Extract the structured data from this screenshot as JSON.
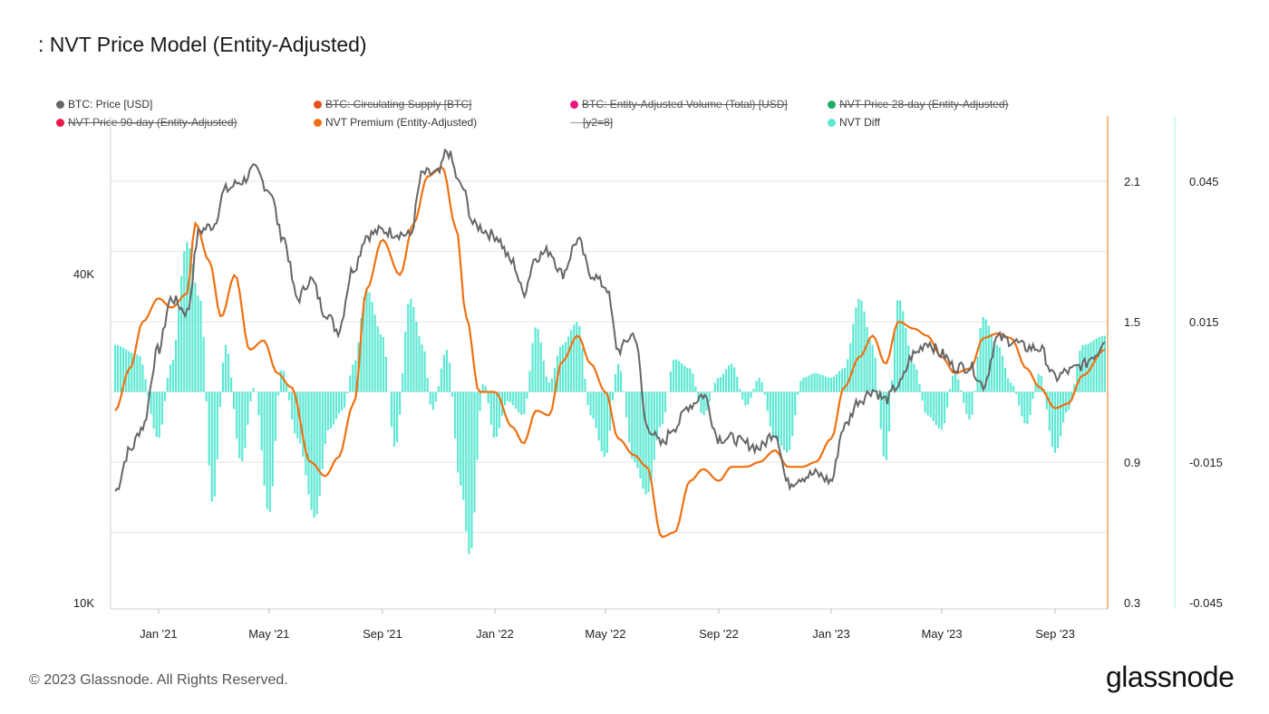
{
  "title": ": NVT Price Model (Entity-Adjusted)",
  "footer": "© 2023 Glassnode. All Rights Reserved.",
  "logo": "glassnode",
  "legend": [
    {
      "label": "BTC: Price [USD]",
      "color": "#666666",
      "active": true
    },
    {
      "label": "BTC: Circulating Supply [BTC]",
      "color": "#e8501a",
      "active": false
    },
    {
      "label": "BTC: Entity-Adjusted Volume (Total) [USD]",
      "color": "#e8197e",
      "active": false
    },
    {
      "label": "NVT Price 28-day (Entity-Adjusted)",
      "color": "#1aaf64",
      "active": false
    },
    {
      "label": "NVT Price 90-day (Entity-Adjusted)",
      "color": "#e8194a",
      "active": false
    },
    {
      "label": "NVT Premium (Entity-Adjusted)",
      "color": "#f07010",
      "active": true
    },
    {
      "label": "[y2=8]",
      "color": "#999999",
      "active": false
    },
    {
      "label": "NVT Diff",
      "color": "#5ee8d4",
      "active": true
    }
  ],
  "chart_data": {
    "type": "line",
    "x_ticks": [
      "Jan '21",
      "May '21",
      "Sep '21",
      "Jan '22",
      "May '22",
      "Sep '22",
      "Jan '23",
      "May '23",
      "Sep '23"
    ],
    "y_left": {
      "scale": "log",
      "range": [
        10000,
        70000
      ],
      "tick_labels": [
        "10K",
        "40K"
      ],
      "ticks": [
        10000,
        40000
      ]
    },
    "y_right1": {
      "range": [
        0.3,
        2.4
      ],
      "tick_labels": [
        "0.3",
        "0.9",
        "1.5",
        "2.1"
      ],
      "ticks": [
        0.3,
        0.9,
        1.5,
        2.1
      ]
    },
    "y_right2": {
      "range": [
        -0.045,
        0.055
      ],
      "tick_labels": [
        "-0.045",
        "-0.015",
        "0.015",
        "0.045"
      ],
      "ticks": [
        -0.045,
        -0.015,
        0.015,
        0.045
      ]
    },
    "series": [
      {
        "name": "BTC: Price [USD]",
        "axis": "left",
        "color": "#666666",
        "points": [
          [
            "2020-11-15",
            16000
          ],
          [
            "2020-12-01",
            19000
          ],
          [
            "2020-12-15",
            21000
          ],
          [
            "2021-01-01",
            29000
          ],
          [
            "2021-01-15",
            36000
          ],
          [
            "2021-02-01",
            34000
          ],
          [
            "2021-02-15",
            48000
          ],
          [
            "2021-03-01",
            49000
          ],
          [
            "2021-03-15",
            57000
          ],
          [
            "2021-04-01",
            59000
          ],
          [
            "2021-04-15",
            62000
          ],
          [
            "2021-05-01",
            57000
          ],
          [
            "2021-05-15",
            47000
          ],
          [
            "2021-06-01",
            36000
          ],
          [
            "2021-06-15",
            39000
          ],
          [
            "2021-07-01",
            34000
          ],
          [
            "2021-07-15",
            31500
          ],
          [
            "2021-08-01",
            41000
          ],
          [
            "2021-08-15",
            47000
          ],
          [
            "2021-09-01",
            48000
          ],
          [
            "2021-09-15",
            47500
          ],
          [
            "2021-10-01",
            47000
          ],
          [
            "2021-10-15",
            61000
          ],
          [
            "2021-11-01",
            61000
          ],
          [
            "2021-11-10",
            67000
          ],
          [
            "2021-11-25",
            58000
          ],
          [
            "2021-12-10",
            49000
          ],
          [
            "2022-01-01",
            47000
          ],
          [
            "2022-01-20",
            42000
          ],
          [
            "2022-02-01",
            37000
          ],
          [
            "2022-02-15",
            43000
          ],
          [
            "2022-03-01",
            44000
          ],
          [
            "2022-03-15",
            40000
          ],
          [
            "2022-04-01",
            46000
          ],
          [
            "2022-04-15",
            40000
          ],
          [
            "2022-05-01",
            38000
          ],
          [
            "2022-05-15",
            29000
          ],
          [
            "2022-06-01",
            31000
          ],
          [
            "2022-06-15",
            21000
          ],
          [
            "2022-07-01",
            19500
          ],
          [
            "2022-07-15",
            21000
          ],
          [
            "2022-08-01",
            23000
          ],
          [
            "2022-08-15",
            24000
          ],
          [
            "2022-09-01",
            20000
          ],
          [
            "2022-09-15",
            20000
          ],
          [
            "2022-10-01",
            19500
          ],
          [
            "2022-10-15",
            19200
          ],
          [
            "2022-11-01",
            20500
          ],
          [
            "2022-11-15",
            16500
          ],
          [
            "2022-12-01",
            17000
          ],
          [
            "2022-12-15",
            17200
          ],
          [
            "2023-01-01",
            16700
          ],
          [
            "2023-01-15",
            21000
          ],
          [
            "2023-02-01",
            23500
          ],
          [
            "2023-02-15",
            24500
          ],
          [
            "2023-03-01",
            23500
          ],
          [
            "2023-03-15",
            25000
          ],
          [
            "2023-04-01",
            28500
          ],
          [
            "2023-04-15",
            30000
          ],
          [
            "2023-05-01",
            28500
          ],
          [
            "2023-05-15",
            27000
          ],
          [
            "2023-06-01",
            27000
          ],
          [
            "2023-06-15",
            25000
          ],
          [
            "2023-07-01",
            30500
          ],
          [
            "2023-07-15",
            30200
          ],
          [
            "2023-08-01",
            29300
          ],
          [
            "2023-08-15",
            29200
          ],
          [
            "2023-09-01",
            25800
          ],
          [
            "2023-09-15",
            26500
          ],
          [
            "2023-10-01",
            27200
          ],
          [
            "2023-10-15",
            28500
          ],
          [
            "2023-10-25",
            30500
          ]
        ]
      },
      {
        "name": "NVT Premium (Entity-Adjusted)",
        "axis": "right1",
        "color": "#f07010",
        "points": [
          [
            "2020-11-15",
            1.12
          ],
          [
            "2020-12-01",
            1.3
          ],
          [
            "2020-12-15",
            1.5
          ],
          [
            "2021-01-01",
            1.6
          ],
          [
            "2021-01-15",
            1.56
          ],
          [
            "2021-02-01",
            1.62
          ],
          [
            "2021-02-10",
            1.92
          ],
          [
            "2021-02-25",
            1.76
          ],
          [
            "2021-03-10",
            1.52
          ],
          [
            "2021-03-25",
            1.7
          ],
          [
            "2021-04-10",
            1.38
          ],
          [
            "2021-04-25",
            1.42
          ],
          [
            "2021-05-10",
            1.28
          ],
          [
            "2021-05-25",
            1.22
          ],
          [
            "2021-06-15",
            0.9
          ],
          [
            "2021-07-01",
            0.84
          ],
          [
            "2021-07-15",
            0.92
          ],
          [
            "2021-08-01",
            1.15
          ],
          [
            "2021-08-15",
            1.64
          ],
          [
            "2021-09-01",
            1.85
          ],
          [
            "2021-09-20",
            1.7
          ],
          [
            "2021-10-05",
            1.92
          ],
          [
            "2021-10-20",
            2.12
          ],
          [
            "2021-11-05",
            2.16
          ],
          [
            "2021-11-20",
            1.9
          ],
          [
            "2021-12-01",
            1.52
          ],
          [
            "2021-12-15",
            1.2
          ],
          [
            "2022-01-01",
            1.2
          ],
          [
            "2022-01-20",
            1.05
          ],
          [
            "2022-02-01",
            0.98
          ],
          [
            "2022-02-15",
            1.12
          ],
          [
            "2022-03-01",
            1.1
          ],
          [
            "2022-03-15",
            1.33
          ],
          [
            "2022-04-01",
            1.44
          ],
          [
            "2022-04-15",
            1.32
          ],
          [
            "2022-05-01",
            1.2
          ],
          [
            "2022-05-15",
            1.0
          ],
          [
            "2022-06-01",
            0.93
          ],
          [
            "2022-06-15",
            0.88
          ],
          [
            "2022-07-01",
            0.58
          ],
          [
            "2022-07-15",
            0.6
          ],
          [
            "2022-08-01",
            0.82
          ],
          [
            "2022-08-15",
            0.87
          ],
          [
            "2022-09-01",
            0.82
          ],
          [
            "2022-09-15",
            0.88
          ],
          [
            "2022-10-01",
            0.88
          ],
          [
            "2022-10-15",
            0.9
          ],
          [
            "2022-11-01",
            0.95
          ],
          [
            "2022-11-15",
            0.88
          ],
          [
            "2022-12-01",
            0.88
          ],
          [
            "2022-12-15",
            0.9
          ],
          [
            "2023-01-01",
            1.0
          ],
          [
            "2023-01-15",
            1.22
          ],
          [
            "2023-02-01",
            1.35
          ],
          [
            "2023-02-15",
            1.44
          ],
          [
            "2023-03-01",
            1.32
          ],
          [
            "2023-03-15",
            1.5
          ],
          [
            "2023-04-01",
            1.47
          ],
          [
            "2023-04-15",
            1.44
          ],
          [
            "2023-05-01",
            1.35
          ],
          [
            "2023-05-15",
            1.28
          ],
          [
            "2023-06-01",
            1.3
          ],
          [
            "2023-06-15",
            1.43
          ],
          [
            "2023-07-01",
            1.45
          ],
          [
            "2023-07-15",
            1.43
          ],
          [
            "2023-08-01",
            1.3
          ],
          [
            "2023-08-15",
            1.22
          ],
          [
            "2023-09-01",
            1.13
          ],
          [
            "2023-09-15",
            1.15
          ],
          [
            "2023-10-01",
            1.27
          ],
          [
            "2023-10-25",
            1.38
          ]
        ]
      },
      {
        "name": "NVT Diff",
        "axis": "right2",
        "color": "#5ee8d4",
        "type": "bar",
        "points": [
          [
            "2020-11-15",
            0.01
          ],
          [
            "2020-12-10",
            0.008
          ],
          [
            "2021-01-01",
            -0.01
          ],
          [
            "2021-01-15",
            0.006
          ],
          [
            "2021-02-01",
            0.032
          ],
          [
            "2021-02-15",
            0.02
          ],
          [
            "2021-03-01",
            -0.024
          ],
          [
            "2021-03-15",
            0.01
          ],
          [
            "2021-04-01",
            -0.015
          ],
          [
            "2021-04-15",
            0.001
          ],
          [
            "2021-05-01",
            -0.026
          ],
          [
            "2021-05-15",
            0.005
          ],
          [
            "2021-06-01",
            -0.01
          ],
          [
            "2021-06-20",
            -0.027
          ],
          [
            "2021-07-05",
            -0.008
          ],
          [
            "2021-07-20",
            -0.004
          ],
          [
            "2021-08-01",
            0.006
          ],
          [
            "2021-08-15",
            0.022
          ],
          [
            "2021-09-01",
            0.012
          ],
          [
            "2021-09-15",
            -0.012
          ],
          [
            "2021-10-01",
            0.02
          ],
          [
            "2021-10-15",
            0.01
          ],
          [
            "2021-10-25",
            -0.004
          ],
          [
            "2021-11-10",
            0.009
          ],
          [
            "2021-11-25",
            -0.02
          ],
          [
            "2021-12-05",
            -0.035
          ],
          [
            "2021-12-20",
            0.002
          ],
          [
            "2022-01-01",
            -0.01
          ],
          [
            "2022-01-15",
            -0.002
          ],
          [
            "2022-02-01",
            -0.005
          ],
          [
            "2022-02-15",
            0.014
          ],
          [
            "2022-03-01",
            0.002
          ],
          [
            "2022-03-15",
            0.01
          ],
          [
            "2022-04-01",
            0.015
          ],
          [
            "2022-04-15",
            -0.005
          ],
          [
            "2022-05-01",
            -0.014
          ],
          [
            "2022-05-15",
            0.006
          ],
          [
            "2022-06-01",
            -0.015
          ],
          [
            "2022-06-15",
            -0.022
          ],
          [
            "2022-07-01",
            -0.007
          ],
          [
            "2022-07-15",
            0.007
          ],
          [
            "2022-08-01",
            0.005
          ],
          [
            "2022-08-15",
            -0.005
          ],
          [
            "2022-09-01",
            0.003
          ],
          [
            "2022-09-15",
            0.006
          ],
          [
            "2022-10-01",
            -0.003
          ],
          [
            "2022-10-15",
            0.003
          ],
          [
            "2022-11-01",
            -0.01
          ],
          [
            "2022-11-15",
            -0.013
          ],
          [
            "2022-12-01",
            0.003
          ],
          [
            "2022-12-15",
            0.004
          ],
          [
            "2023-01-01",
            0.003
          ],
          [
            "2023-01-15",
            0.005
          ],
          [
            "2023-02-01",
            0.02
          ],
          [
            "2023-02-15",
            0.01
          ],
          [
            "2023-03-01",
            -0.015
          ],
          [
            "2023-03-15",
            0.02
          ],
          [
            "2023-04-01",
            0.006
          ],
          [
            "2023-04-15",
            -0.005
          ],
          [
            "2023-05-01",
            -0.008
          ],
          [
            "2023-05-15",
            0.004
          ],
          [
            "2023-06-01",
            -0.006
          ],
          [
            "2023-06-15",
            0.016
          ],
          [
            "2023-07-01",
            0.01
          ],
          [
            "2023-07-15",
            0.002
          ],
          [
            "2023-08-01",
            -0.007
          ],
          [
            "2023-08-15",
            0.004
          ],
          [
            "2023-09-01",
            -0.013
          ],
          [
            "2023-09-15",
            -0.004
          ],
          [
            "2023-10-01",
            0.01
          ],
          [
            "2023-10-25",
            0.012
          ]
        ]
      }
    ]
  }
}
